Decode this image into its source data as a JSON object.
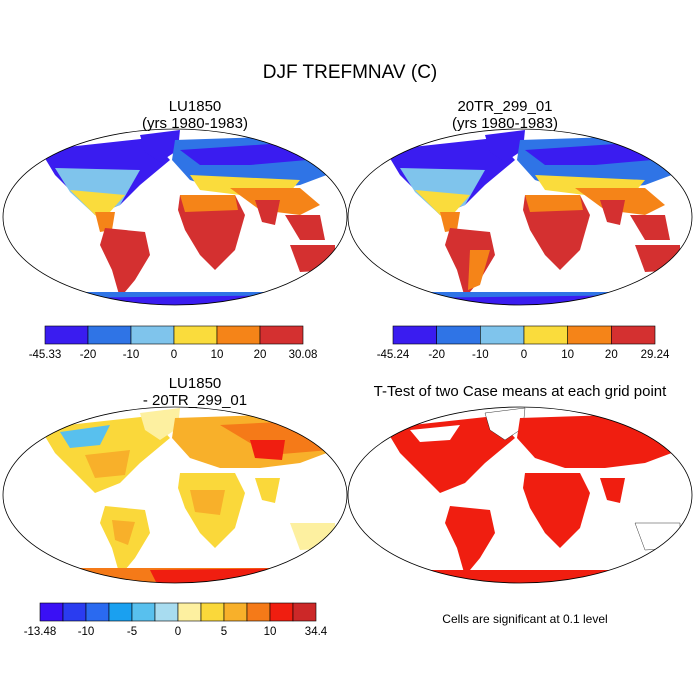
{
  "main_title": "DJF TREFMNAV (C)",
  "panels": [
    {
      "title_line1": "LU1850",
      "title_line2": "(yrs 1980-1983)",
      "colorbar": {
        "colors": [
          "#3a1cf0",
          "#2f74e6",
          "#7fc4ec",
          "#fadc3c",
          "#f58418",
          "#d43030"
        ],
        "labels": [
          "-45.33",
          "-20",
          "-10",
          "0",
          "10",
          "20",
          "30.08"
        ]
      }
    },
    {
      "title_line1": "20TR_299_01",
      "title_line2": "(yrs 1980-1983)",
      "colorbar": {
        "colors": [
          "#3a1cf0",
          "#2f74e6",
          "#7fc4ec",
          "#fadc3c",
          "#f58418",
          "#d43030"
        ],
        "labels": [
          "-45.24",
          "-20",
          "-10",
          "0",
          "10",
          "20",
          "29.24"
        ]
      }
    },
    {
      "title_line1": "LU1850",
      "title_line2": "- 20TR_299_01",
      "colorbar": {
        "colors": [
          "#3a10f5",
          "#2a3cf0",
          "#2a6af0",
          "#1aa0f0",
          "#58c0ee",
          "#a8dcf0",
          "#fdf0a0",
          "#fad83a",
          "#f8b02a",
          "#f57a18",
          "#f01e10",
          "#cc2828"
        ],
        "labels": [
          "-13.48",
          "",
          "-10",
          "",
          "-5",
          "",
          "0",
          "",
          "5",
          "",
          "10",
          "",
          "34.4"
        ]
      }
    },
    {
      "title_line1": "T-Test of two Case means at each grid point",
      "footnote": "Cells are significant at 0.1 level"
    }
  ]
}
